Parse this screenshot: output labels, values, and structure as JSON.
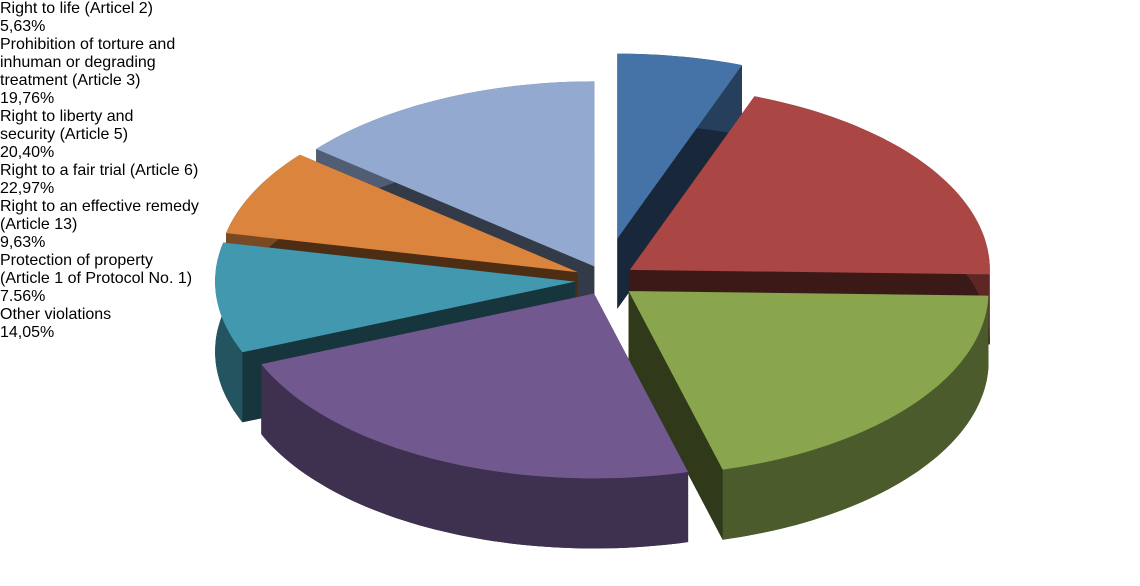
{
  "chart_data": {
    "type": "pie",
    "categories": [
      "Right to life (Articel 2)",
      "Prohibition of torture and inhuman or degrading treatment (Article 3)",
      "Right to liberty and security (Article 5)",
      "Right to a fair trial (Article 6)",
      "Right to an effective remedy (Article 13)",
      "Protection of property (Article 1 of Protocol No. 1)",
      "Other violations"
    ],
    "values": [
      5.63,
      19.76,
      20.4,
      22.97,
      9.63,
      7.56,
      14.05
    ],
    "value_labels": [
      "5,63%",
      "19,76%",
      "20,40%",
      "22,97%",
      "9,63%",
      "7.56%",
      "14,05%"
    ],
    "colors": [
      "#4572a7",
      "#aa4643",
      "#89a54e",
      "#71588f",
      "#4198af",
      "#db843d",
      "#93a9cf"
    ]
  }
}
